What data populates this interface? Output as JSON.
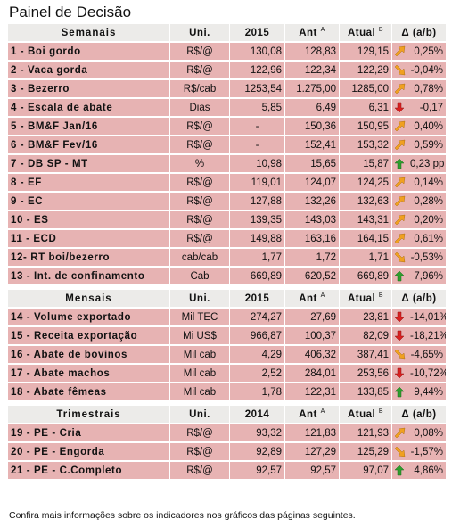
{
  "title": "Painel de Decisão",
  "footer": "Confira mais informações sobre os indicadores nos gráficos das páginas seguintes.",
  "colors": {
    "row": "#e7b3b3",
    "header": "#ecebe9",
    "arrow_orange": "#f0a020",
    "arrow_red": "#d92020",
    "arrow_green": "#2e9e2e"
  },
  "sections": [
    {
      "header": {
        "name": "Semanais",
        "uni": "Uni.",
        "year": "2015",
        "ant": "Ant",
        "ant_sup": "A",
        "atual": "Atual",
        "atual_sup": "B",
        "delta": "Δ (a/b)"
      },
      "rows": [
        {
          "name": "1 - Boi gordo",
          "uni": "R$/@",
          "y": "130,08",
          "ant": "128,83",
          "atual": "129,15",
          "icon": "arrow-up-right-icon",
          "delta": "0,25%"
        },
        {
          "name": "2 - Vaca gorda",
          "uni": "R$/@",
          "y": "122,96",
          "ant": "122,34",
          "atual": "122,29",
          "icon": "arrow-down-right-icon",
          "delta": "-0,04%"
        },
        {
          "name": "3 - Bezerro",
          "uni": "R$/cab",
          "y": "1253,54",
          "ant": "1.275,00",
          "atual": "1285,00",
          "icon": "arrow-up-right-icon",
          "delta": "0,78%"
        },
        {
          "name": "4 - Escala de abate",
          "uni": "Dias",
          "y": "5,85",
          "ant": "6,49",
          "atual": "6,31",
          "icon": "arrow-down-red-icon",
          "delta": "-0,17"
        },
        {
          "name": "5 - BM&F Jan/16",
          "uni": "R$/@",
          "y": "-",
          "ant": "150,36",
          "atual": "150,95",
          "icon": "arrow-up-right-icon",
          "delta": "0,40%"
        },
        {
          "name": "6 - BM&F Fev/16",
          "uni": "R$/@",
          "y": "-",
          "ant": "152,41",
          "atual": "153,32",
          "icon": "arrow-up-right-icon",
          "delta": "0,59%"
        },
        {
          "name": "7 - DB SP - MT",
          "uni": "%",
          "y": "10,98",
          "ant": "15,65",
          "atual": "15,87",
          "icon": "arrow-up-green-icon",
          "delta": "0,23 pp"
        },
        {
          "name": "8 - EF",
          "uni": "R$/@",
          "y": "119,01",
          "ant": "124,07",
          "atual": "124,25",
          "icon": "arrow-up-right-icon",
          "delta": "0,14%"
        },
        {
          "name": "9 - EC",
          "uni": "R$/@",
          "y": "127,88",
          "ant": "132,26",
          "atual": "132,63",
          "icon": "arrow-up-right-icon",
          "delta": "0,28%"
        },
        {
          "name": "10 - ES",
          "uni": "R$/@",
          "y": "139,35",
          "ant": "143,03",
          "atual": "143,31",
          "icon": "arrow-up-right-icon",
          "delta": "0,20%"
        },
        {
          "name": "11 - ECD",
          "uni": "R$/@",
          "y": "149,88",
          "ant": "163,16",
          "atual": "164,15",
          "icon": "arrow-up-right-icon",
          "delta": "0,61%"
        },
        {
          "name": "12- RT boi/bezerro",
          "uni": "cab/cab",
          "y": "1,77",
          "ant": "1,72",
          "atual": "1,71",
          "icon": "arrow-down-right-icon",
          "delta": "-0,53%"
        },
        {
          "name": "13 - Int. de confinamento",
          "uni": "Cab",
          "y": "669,89",
          "ant": "620,52",
          "atual": "669,89",
          "icon": "arrow-up-green-icon",
          "delta": "7,96%"
        }
      ]
    },
    {
      "header": {
        "name": "Mensais",
        "uni": "Uni.",
        "year": "2015",
        "ant": "Ant",
        "ant_sup": "A",
        "atual": "Atual",
        "atual_sup": "B",
        "delta": "Δ (a/b)"
      },
      "rows": [
        {
          "name": "14 - Volume exportado",
          "uni": "Mil TEC",
          "y": "274,27",
          "ant": "27,69",
          "atual": "23,81",
          "icon": "arrow-down-red-icon",
          "delta": "-14,01%"
        },
        {
          "name": "15 - Receita exportação",
          "uni": "Mi US$",
          "y": "966,87",
          "ant": "100,37",
          "atual": "82,09",
          "icon": "arrow-down-red-icon",
          "delta": "-18,21%"
        },
        {
          "name": "16 - Abate de bovinos",
          "uni": "Mil cab",
          "y": "4,29",
          "ant": "406,32",
          "atual": "387,41",
          "icon": "arrow-down-right-icon",
          "delta": "-4,65%"
        },
        {
          "name": "17 - Abate machos",
          "uni": "Mil cab",
          "y": "2,52",
          "ant": "284,01",
          "atual": "253,56",
          "icon": "arrow-down-red-icon",
          "delta": "-10,72%"
        },
        {
          "name": "18 - Abate fêmeas",
          "uni": "Mil cab",
          "y": "1,78",
          "ant": "122,31",
          "atual": "133,85",
          "icon": "arrow-up-green-icon",
          "delta": "9,44%"
        }
      ]
    },
    {
      "header": {
        "name": "Trimestrais",
        "uni": "Uni.",
        "year": "2014",
        "ant": "Ant",
        "ant_sup": "A",
        "atual": "Atual",
        "atual_sup": "B",
        "delta": "Δ (a/b)"
      },
      "rows": [
        {
          "name": "19 - PE - Cria",
          "uni": "R$/@",
          "y": "93,32",
          "ant": "121,83",
          "atual": "121,93",
          "icon": "arrow-up-right-icon",
          "delta": "0,08%"
        },
        {
          "name": "20 - PE - Engorda",
          "uni": "R$/@",
          "y": "92,89",
          "ant": "127,29",
          "atual": "125,29",
          "icon": "arrow-down-right-icon",
          "delta": "-1,57%"
        },
        {
          "name": "21 - PE - C.Completo",
          "uni": "R$/@",
          "y": "92,57",
          "ant": "92,57",
          "atual": "97,07",
          "icon": "arrow-up-green-icon",
          "delta": "4,86%"
        }
      ]
    }
  ]
}
